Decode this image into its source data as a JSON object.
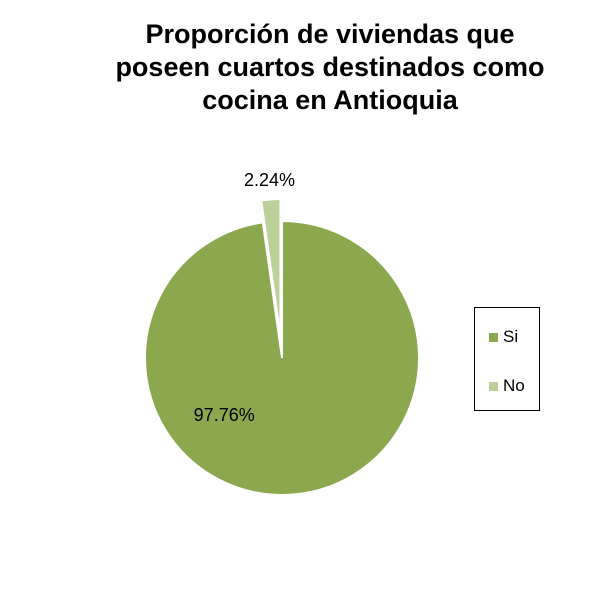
{
  "chart_data": {
    "type": "pie",
    "title": "Proporción de viviendas que poseen cuartos destinados como cocina en Antioquia",
    "title_lines": [
      "Proporción de viviendas que",
      "poseen cuartos destinados como",
      "cocina en Antioquia"
    ],
    "categories": [
      "Si",
      "No"
    ],
    "values": [
      97.76,
      2.24
    ],
    "labels": [
      "97.76%",
      "2.24%"
    ],
    "colors": [
      "#8ba84e",
      "#bcd09a"
    ],
    "exploded": [
      "No"
    ],
    "legend_position": "right"
  }
}
